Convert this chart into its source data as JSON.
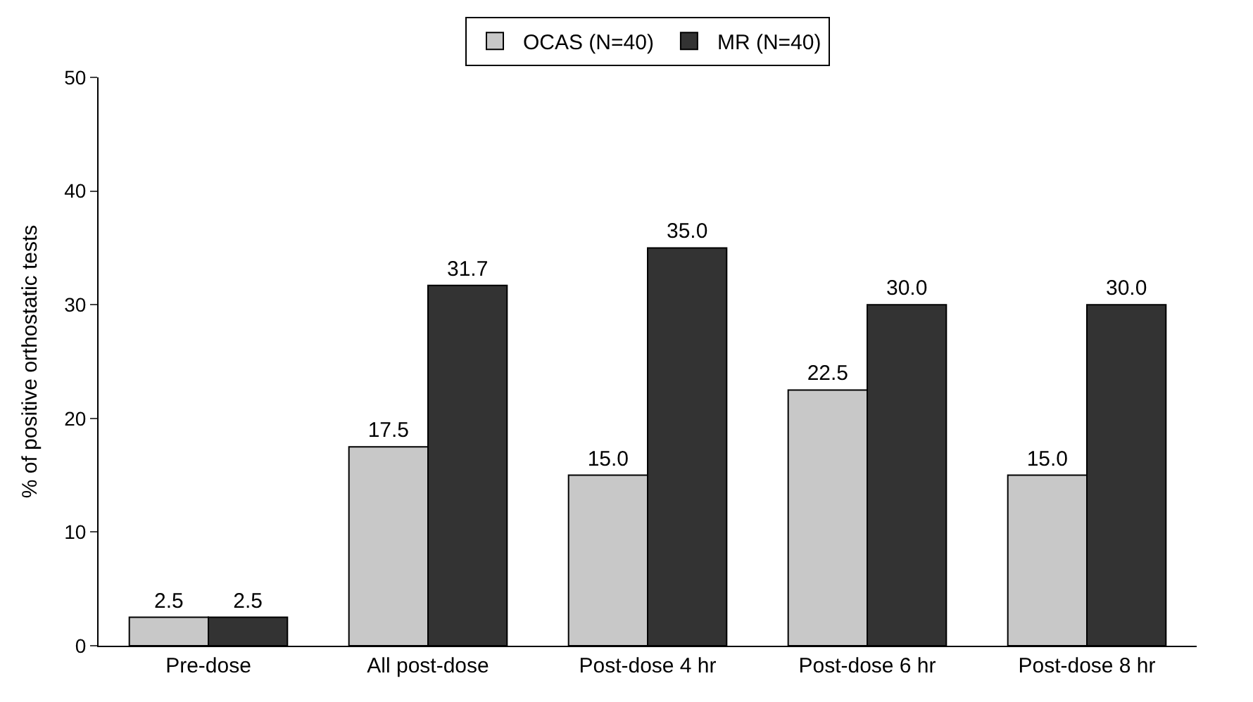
{
  "chart_data": {
    "type": "bar",
    "ylabel": "% of positive orthostatic tests",
    "categories": [
      "Pre-dose",
      "All post-dose",
      "Post-dose 4 hr",
      "Post-dose 6 hr",
      "Post-dose 8 hr"
    ],
    "series": [
      {
        "name": "OCAS (N=40)",
        "color": "#c8c8c8",
        "values": [
          2.5,
          17.5,
          15.0,
          22.5,
          15.0
        ],
        "value_labels": [
          "2.5",
          "17.5",
          "15.0",
          "22.5",
          "15.0"
        ]
      },
      {
        "name": "MR (N=40)",
        "color": "#333333",
        "values": [
          2.5,
          31.7,
          35.0,
          30.0,
          30.0
        ],
        "value_labels": [
          "2.5",
          "31.7",
          "35.0",
          "30.0",
          "30.0"
        ]
      }
    ],
    "ylim": [
      0,
      50
    ],
    "yticks": [
      0,
      10,
      20,
      30,
      40,
      50
    ],
    "legend": "top"
  }
}
